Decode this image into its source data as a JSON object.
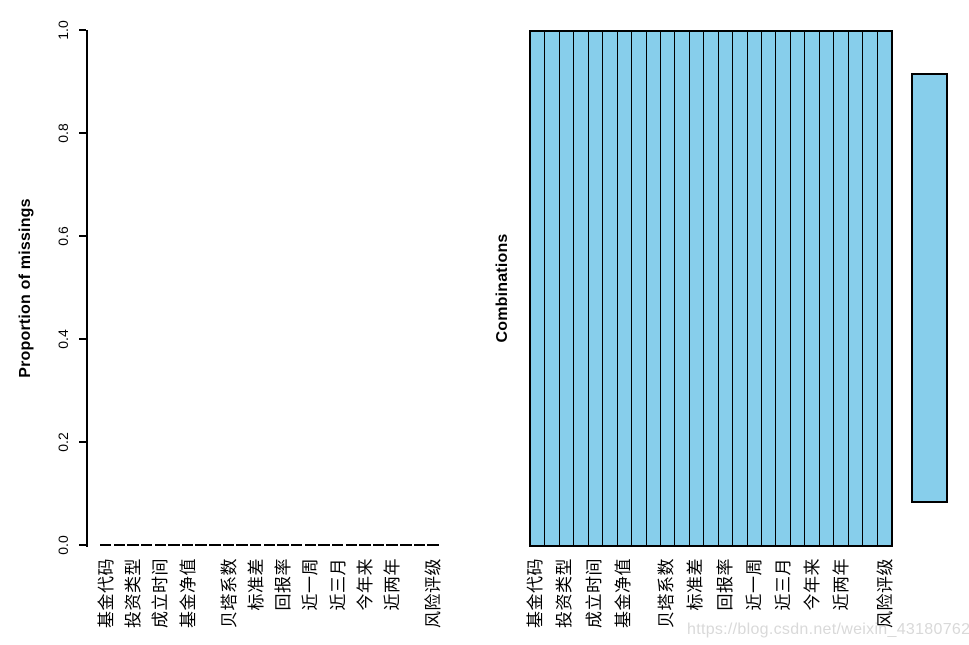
{
  "watermark": {
    "text": "https://blog.csdn.net/weixin_43180762"
  },
  "colors": {
    "observed_cell": "#87CEEB",
    "axis": "#000000",
    "watermark_gray": "#d9d9d9"
  },
  "left_chart": {
    "ylabel": "Proportion of missings",
    "ytick_labels": [
      "0.0",
      "0.2",
      "0.4",
      "0.6",
      "0.8",
      "1.0"
    ],
    "n_bars": 25,
    "x_labels": [
      "基金代码",
      "投资类型",
      "成立时间",
      "基金净值",
      "贝塔系数",
      "标准差",
      "回报率",
      "近一周",
      "近三月",
      "今年来",
      "近两年",
      "风险评级"
    ],
    "labeled_bar_indices": [
      1,
      3,
      5,
      7,
      10,
      12,
      14,
      16,
      18,
      20,
      22,
      25
    ]
  },
  "right_chart": {
    "ylabel": "Combinations",
    "n_columns": 25,
    "x_labels": [
      "基金代码",
      "投资类型",
      "成立时间",
      "基金净值",
      "贝塔系数",
      "标准差",
      "回报率",
      "近一周",
      "近三月",
      "今年来",
      "近两年",
      "风险评级"
    ],
    "labeled_column_indices": [
      1,
      3,
      5,
      7,
      10,
      12,
      14,
      16,
      18,
      20,
      22,
      25
    ]
  },
  "chart_data": [
    {
      "type": "bar",
      "title": "",
      "xlabel": "",
      "ylabel": "Proportion of missings",
      "categories": [
        "基金代码",
        "投资类型",
        "成立时间",
        "基金净值",
        "贝塔系数",
        "标准差",
        "回报率",
        "近一周",
        "近三月",
        "今年来",
        "近两年",
        "风险评级"
      ],
      "values": [
        0,
        0,
        0,
        0,
        0,
        0,
        0,
        0,
        0,
        0,
        0,
        0
      ],
      "ylim": [
        0,
        1
      ],
      "yticks": [
        0.0,
        0.2,
        0.4,
        0.6,
        0.8,
        1.0
      ],
      "grid": false,
      "legend": "none",
      "note": "25 bars total, every bar height 0 (no missing values); only 12 of 25 axis labels rendered where they fit"
    },
    {
      "type": "heatmap",
      "title": "",
      "xlabel": "",
      "ylabel": "Combinations",
      "rows": 1,
      "columns": 25,
      "cell_value": "observed",
      "cell_color": "#87CEEB",
      "note": "single combination row: all 25 variables observed (solid skyblue block with column separators); detached skyblue side bar at right spanning ~0.085 to ~0.917 of plot height",
      "side_bar": {
        "rel_bottom": 0.085,
        "rel_top": 0.917
      }
    }
  ]
}
